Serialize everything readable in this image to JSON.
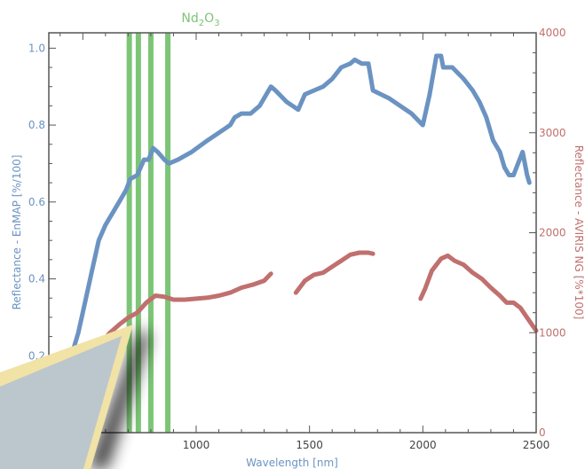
{
  "chart_data": {
    "type": "line",
    "annotation": {
      "label_base": "Nd",
      "sub1": "2",
      "mid": "O",
      "sub2": "3",
      "bands_nm": [
        705,
        745,
        800,
        875
      ],
      "color": "#7cc576"
    },
    "x_axis": {
      "label": "Wavelength [nm]",
      "range": [
        350,
        2500
      ],
      "ticks": [
        500,
        1000,
        1500,
        2000,
        2500
      ]
    },
    "y_left": {
      "label": "Reflectance - EnMAP [%/100]",
      "range": [
        0.0,
        1.04
      ],
      "ticks": [
        0.2,
        0.4,
        0.6,
        0.8,
        1.0
      ],
      "tick_labels": [
        "0.2",
        "0.4",
        "0.6",
        "0.8",
        "1.0"
      ],
      "color": "#6b93c2"
    },
    "y_right": {
      "label": "Reflectance - AVIRIS NG [%*100]",
      "range": [
        0,
        4000
      ],
      "ticks": [
        0,
        1000,
        2000,
        3000,
        4000
      ],
      "color": "#c0706e"
    },
    "series": [
      {
        "axis": "left",
        "color": "#6b93c2",
        "points": [
          [
            390,
            0.1
          ],
          [
            420,
            0.15
          ],
          [
            450,
            0.2
          ],
          [
            480,
            0.26
          ],
          [
            510,
            0.34
          ],
          [
            540,
            0.42
          ],
          [
            570,
            0.5
          ],
          [
            600,
            0.54
          ],
          [
            630,
            0.57
          ],
          [
            660,
            0.6
          ],
          [
            690,
            0.63
          ],
          [
            710,
            0.66
          ],
          [
            740,
            0.67
          ],
          [
            770,
            0.71
          ],
          [
            790,
            0.71
          ],
          [
            810,
            0.74
          ],
          [
            830,
            0.73
          ],
          [
            860,
            0.71
          ],
          [
            880,
            0.7
          ],
          [
            920,
            0.71
          ],
          [
            980,
            0.73
          ],
          [
            1050,
            0.76
          ],
          [
            1100,
            0.78
          ],
          [
            1150,
            0.8
          ],
          [
            1170,
            0.82
          ],
          [
            1200,
            0.83
          ],
          [
            1240,
            0.83
          ],
          [
            1280,
            0.85
          ],
          [
            1310,
            0.88
          ],
          [
            1330,
            0.9
          ],
          [
            1350,
            0.89
          ],
          [
            1400,
            0.86
          ],
          [
            1450,
            0.84
          ],
          [
            1480,
            0.88
          ],
          [
            1520,
            0.89
          ],
          [
            1560,
            0.9
          ],
          [
            1600,
            0.92
          ],
          [
            1640,
            0.95
          ],
          [
            1680,
            0.96
          ],
          [
            1700,
            0.97
          ],
          [
            1730,
            0.96
          ],
          [
            1760,
            0.96
          ],
          [
            1780,
            0.89
          ],
          [
            1850,
            0.87
          ],
          [
            1950,
            0.83
          ],
          [
            2000,
            0.8
          ],
          [
            2030,
            0.88
          ],
          [
            2060,
            0.98
          ],
          [
            2080,
            0.98
          ],
          [
            2090,
            0.95
          ],
          [
            2130,
            0.95
          ],
          [
            2180,
            0.92
          ],
          [
            2220,
            0.89
          ],
          [
            2250,
            0.86
          ],
          [
            2280,
            0.82
          ],
          [
            2310,
            0.76
          ],
          [
            2340,
            0.73
          ],
          [
            2360,
            0.69
          ],
          [
            2380,
            0.67
          ],
          [
            2400,
            0.67
          ],
          [
            2420,
            0.7
          ],
          [
            2440,
            0.73
          ],
          [
            2460,
            0.67
          ],
          [
            2470,
            0.65
          ]
        ]
      },
      {
        "axis": "right",
        "color": "#c0706e",
        "segments": [
          [
            [
              400,
              250
            ],
            [
              420,
              400
            ],
            [
              440,
              500
            ],
            [
              470,
              600
            ],
            [
              500,
              700
            ],
            [
              540,
              800
            ],
            [
              580,
              900
            ],
            [
              620,
              1000
            ],
            [
              660,
              1080
            ],
            [
              700,
              1150
            ],
            [
              740,
              1200
            ],
            [
              780,
              1300
            ],
            [
              820,
              1370
            ],
            [
              860,
              1360
            ],
            [
              900,
              1330
            ],
            [
              950,
              1330
            ],
            [
              1000,
              1340
            ],
            [
              1050,
              1350
            ],
            [
              1100,
              1370
            ],
            [
              1150,
              1400
            ],
            [
              1200,
              1450
            ],
            [
              1250,
              1480
            ],
            [
              1300,
              1520
            ],
            [
              1330,
              1590
            ]
          ],
          [
            [
              1440,
              1400
            ],
            [
              1480,
              1520
            ],
            [
              1520,
              1580
            ],
            [
              1560,
              1600
            ],
            [
              1600,
              1660
            ],
            [
              1640,
              1720
            ],
            [
              1680,
              1780
            ],
            [
              1720,
              1800
            ],
            [
              1760,
              1800
            ],
            [
              1780,
              1790
            ]
          ],
          [
            [
              1990,
              1340
            ],
            [
              2010,
              1440
            ],
            [
              2040,
              1620
            ],
            [
              2080,
              1740
            ],
            [
              2110,
              1770
            ],
            [
              2140,
              1720
            ],
            [
              2180,
              1680
            ],
            [
              2220,
              1600
            ],
            [
              2260,
              1540
            ],
            [
              2300,
              1450
            ],
            [
              2340,
              1370
            ],
            [
              2370,
              1300
            ],
            [
              2400,
              1300
            ],
            [
              2430,
              1250
            ],
            [
              2460,
              1150
            ],
            [
              2500,
              1020
            ]
          ]
        ]
      }
    ]
  }
}
